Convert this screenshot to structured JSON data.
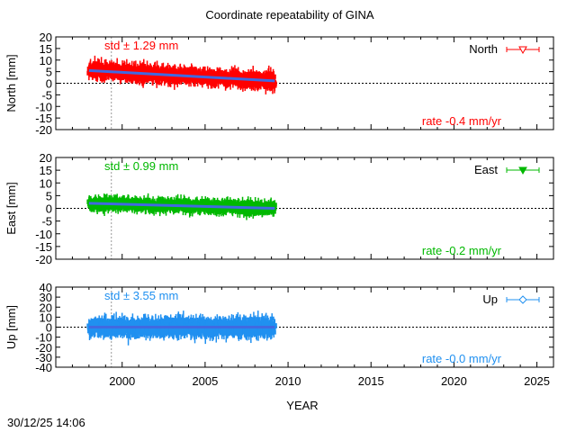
{
  "title": "Coordinate repeatability of GINA",
  "timestamp": "30/12/25 14:06",
  "chart_data": [
    {
      "type": "scatter",
      "ylabel": "North [mm]",
      "xlabel": "",
      "xlim": [
        1996,
        2026
      ],
      "ylim": [
        -20,
        20
      ],
      "yticks": [
        20,
        15,
        10,
        5,
        0,
        -5,
        -10,
        -15,
        -20
      ],
      "series": [
        {
          "name": "North",
          "color": "#ff0000",
          "marker": "open-triangle-down",
          "x_range": [
            1998.0,
            2009.2
          ],
          "error_bars": true
        }
      ],
      "trend": {
        "color": "#4169e1",
        "x": [
          1998.0,
          2009.2
        ],
        "y": [
          5.5,
          1.0
        ]
      },
      "std_label": "std ± 1.29 mm",
      "rate_label": "rate -0.4 mm/yr",
      "zero_line": true,
      "reference_year": 1999.35,
      "legend": "top-right"
    },
    {
      "type": "scatter",
      "ylabel": "East [mm]",
      "xlabel": "",
      "xlim": [
        1996,
        2026
      ],
      "ylim": [
        -20,
        20
      ],
      "yticks": [
        20,
        15,
        10,
        5,
        0,
        -5,
        -10,
        -15,
        -20
      ],
      "series": [
        {
          "name": "East",
          "color": "#00b800",
          "marker": "filled-triangle-down",
          "x_range": [
            1998.0,
            2009.2
          ],
          "error_bars": true
        }
      ],
      "trend": {
        "color": "#4169e1",
        "x": [
          1998.0,
          2009.2
        ],
        "y": [
          2.0,
          0.0
        ]
      },
      "std_label": "std ± 0.99 mm",
      "rate_label": "rate -0.2 mm/yr",
      "zero_line": true,
      "reference_year": 1999.35,
      "legend": "top-right"
    },
    {
      "type": "scatter",
      "ylabel": "Up [mm]",
      "xlabel": "YEAR",
      "xlim": [
        1996,
        2026
      ],
      "ylim": [
        -40,
        40
      ],
      "yticks": [
        40,
        30,
        20,
        10,
        0,
        -10,
        -20,
        -30,
        -40
      ],
      "xticks": [
        2000,
        2005,
        2010,
        2015,
        2020,
        2025
      ],
      "series": [
        {
          "name": "Up",
          "color": "#2090f0",
          "marker": "open-diamond",
          "x_range": [
            1998.0,
            2009.2
          ],
          "error_bars": true
        }
      ],
      "trend": {
        "color": "#4169e1",
        "x": [
          1998.0,
          2009.2
        ],
        "y": [
          0.0,
          0.0
        ]
      },
      "std_label": "std ± 3.55 mm",
      "rate_label": "rate -0.0 mm/yr",
      "zero_line": true,
      "reference_year": 1999.35,
      "legend": "top-right"
    }
  ]
}
